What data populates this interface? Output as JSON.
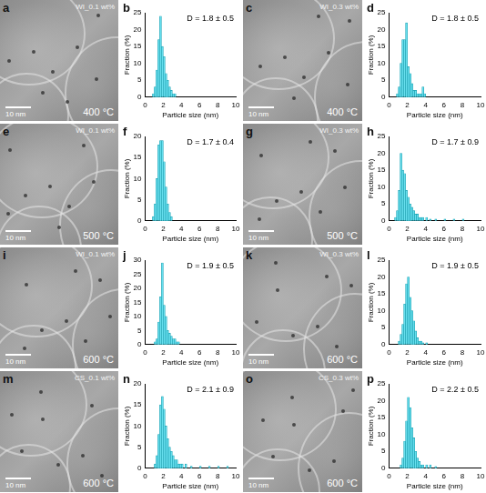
{
  "images": [
    {
      "label": "a",
      "sample": "WI_0.1 wt%",
      "temperature": "400 °C",
      "scale_bar": "10 nm"
    },
    {
      "label": "c",
      "sample": "WI_0.3 wt%",
      "temperature": "400 °C",
      "scale_bar": "10 nm"
    },
    {
      "label": "e",
      "sample": "WI_0.1 wt%",
      "temperature": "500 °C",
      "scale_bar": "10 nm"
    },
    {
      "label": "g",
      "sample": "WI_0.3 wt%",
      "temperature": "500 °C",
      "scale_bar": "10 nm"
    },
    {
      "label": "i",
      "sample": "WI_0.1 wt%",
      "temperature": "600 °C",
      "scale_bar": "10 nm"
    },
    {
      "label": "k",
      "sample": "WI_0.3 wt%",
      "temperature": "600 °C",
      "scale_bar": "10 nm"
    },
    {
      "label": "m",
      "sample": "CS_0.1 wt%",
      "temperature": "600 °C",
      "scale_bar": "10 nm"
    },
    {
      "label": "o",
      "sample": "CS_0.3 wt%",
      "temperature": "600 °C",
      "scale_bar": "10 nm"
    }
  ],
  "chart_data": [
    {
      "type": "histogram",
      "label": "b",
      "annotation": "D = 1.8 ± 0.5",
      "x_label": "Particle size (nm)",
      "y_label": "Fraction (%)",
      "bins": [
        0,
        0.2,
        0.4,
        0.6,
        0.8,
        1,
        1.2,
        1.4,
        1.6,
        1.8,
        2,
        2.2,
        2.4,
        2.6,
        2.8,
        3,
        3.2,
        3.4,
        3.6,
        3.8,
        4,
        4.2,
        4.4,
        4.6,
        4.8,
        5,
        5.2,
        5.4,
        5.6,
        5.8,
        6,
        6.2,
        6.4,
        6.6,
        6.8,
        7,
        7.2,
        7.4,
        7.6,
        7.8,
        8,
        8.2,
        8.4,
        8.6,
        8.8,
        9,
        9.2,
        9.4,
        9.6,
        9.8,
        10
      ],
      "values": [
        0,
        0,
        0,
        0,
        1,
        3,
        8,
        17,
        24,
        15,
        12,
        7,
        5,
        3,
        2,
        1,
        1,
        0,
        0,
        0,
        0,
        0,
        0,
        0,
        0,
        0,
        0,
        0,
        0,
        0,
        0,
        0,
        0,
        0,
        0,
        0,
        0,
        0,
        0,
        0,
        0,
        0,
        0,
        0,
        0,
        0,
        0,
        0,
        0,
        0
      ],
      "color": "#66dfee",
      "xlim": [
        0,
        10
      ],
      "xticks": [
        0,
        2,
        4,
        6,
        8,
        10
      ],
      "ylim": [
        0,
        25
      ],
      "yticks": [
        0,
        5,
        10,
        15,
        20,
        25
      ],
      "grid": false
    },
    {
      "type": "histogram",
      "label": "d",
      "annotation": "D = 1.8 ± 0.5",
      "x_label": "Particle size (nm)",
      "y_label": "Fraction (%)",
      "bins": [
        0,
        0.2,
        0.4,
        0.6,
        0.8,
        1,
        1.2,
        1.4,
        1.6,
        1.8,
        2,
        2.2,
        2.4,
        2.6,
        2.8,
        3,
        3.2,
        3.4,
        3.6,
        3.8,
        4,
        4.2,
        4.4,
        4.6,
        4.8,
        5,
        5.2,
        5.4,
        5.6,
        5.8,
        6,
        6.2,
        6.4,
        6.6,
        6.8,
        7,
        7.2,
        7.4,
        7.6,
        7.8,
        8,
        8.2,
        8.4,
        8.6,
        8.8,
        9,
        9.2,
        9.4,
        9.6,
        9.8,
        10
      ],
      "values": [
        0,
        0,
        0,
        0,
        1,
        3,
        10,
        17,
        17,
        22,
        9,
        7,
        4,
        2,
        2,
        1,
        1,
        1,
        3,
        1,
        0,
        0,
        0,
        0,
        0,
        0,
        0,
        0,
        0,
        0,
        0,
        0,
        0,
        0,
        0,
        0,
        0,
        0,
        0,
        0,
        0,
        0,
        0,
        0,
        0,
        0,
        0,
        0,
        0,
        0
      ],
      "color": "#66dfee",
      "xlim": [
        0,
        10
      ],
      "xticks": [
        0,
        2,
        4,
        6,
        8,
        10
      ],
      "ylim": [
        0,
        25
      ],
      "yticks": [
        0,
        5,
        10,
        15,
        20,
        25
      ],
      "grid": false
    },
    {
      "type": "histogram",
      "label": "f",
      "annotation": "D = 1.7 ± 0.4",
      "x_label": "Particle size (nm)",
      "y_label": "Fraction (%)",
      "bins": [
        0,
        0.2,
        0.4,
        0.6,
        0.8,
        1,
        1.2,
        1.4,
        1.6,
        1.8,
        2,
        2.2,
        2.4,
        2.6,
        2.8,
        3,
        3.2,
        3.4,
        3.6,
        3.8,
        4,
        4.2,
        4.4,
        4.6,
        4.8,
        5,
        5.2,
        5.4,
        5.6,
        5.8,
        6,
        6.2,
        6.4,
        6.6,
        6.8,
        7,
        7.2,
        7.4,
        7.6,
        7.8,
        8,
        8.2,
        8.4,
        8.6,
        8.8,
        9,
        9.2,
        9.4,
        9.6,
        9.8,
        10
      ],
      "values": [
        0,
        0,
        0,
        0,
        1,
        4,
        10,
        18,
        19,
        19,
        14,
        8,
        4,
        2,
        1,
        0,
        0,
        0,
        0,
        0,
        0,
        0,
        0,
        0,
        0,
        0,
        0,
        0,
        0,
        0,
        0,
        0,
        0,
        0,
        0,
        0,
        0,
        0,
        0,
        0,
        0,
        0,
        0,
        0,
        0,
        0,
        0,
        0,
        0,
        0
      ],
      "color": "#66dfee",
      "xlim": [
        0,
        10
      ],
      "xticks": [
        0,
        2,
        4,
        6,
        8,
        10
      ],
      "ylim": [
        0,
        20
      ],
      "yticks": [
        0,
        5,
        10,
        15,
        20
      ],
      "grid": false
    },
    {
      "type": "histogram",
      "label": "h",
      "annotation": "D = 1.7 ± 0.9",
      "x_label": "Particle size (nm)",
      "y_label": "Fraction (%)",
      "bins": [
        0,
        0.2,
        0.4,
        0.6,
        0.8,
        1,
        1.2,
        1.4,
        1.6,
        1.8,
        2,
        2.2,
        2.4,
        2.6,
        2.8,
        3,
        3.2,
        3.4,
        3.6,
        3.8,
        4,
        4.2,
        4.4,
        4.6,
        4.8,
        5,
        5.2,
        5.4,
        5.6,
        5.8,
        6,
        6.2,
        6.4,
        6.6,
        6.8,
        7,
        7.2,
        7.4,
        7.6,
        7.8,
        8,
        8.2,
        8.4,
        8.6,
        8.8,
        9,
        9.2,
        9.4,
        9.6,
        9.8,
        10
      ],
      "values": [
        0,
        0,
        0,
        1,
        3,
        9,
        20,
        15,
        14,
        9,
        7,
        5,
        4,
        3,
        2,
        2,
        1,
        1,
        1,
        0,
        1,
        0,
        0.5,
        0,
        0,
        0.5,
        0,
        0,
        0,
        0,
        0.5,
        0,
        0,
        0,
        0,
        0.5,
        0,
        0,
        0,
        0,
        0.5,
        0,
        0,
        0,
        0,
        0,
        0,
        0,
        0,
        0
      ],
      "color": "#66dfee",
      "xlim": [
        0,
        10
      ],
      "xticks": [
        0,
        2,
        4,
        6,
        8,
        10
      ],
      "ylim": [
        0,
        25
      ],
      "yticks": [
        0,
        5,
        10,
        15,
        20,
        25
      ],
      "grid": false
    },
    {
      "type": "histogram",
      "label": "j",
      "annotation": "D = 1.9 ± 0.5",
      "x_label": "Particle size (nm)",
      "y_label": "Fraction (%)",
      "bins": [
        0,
        0.2,
        0.4,
        0.6,
        0.8,
        1,
        1.2,
        1.4,
        1.6,
        1.8,
        2,
        2.2,
        2.4,
        2.6,
        2.8,
        3,
        3.2,
        3.4,
        3.6,
        3.8,
        4,
        4.2,
        4.4,
        4.6,
        4.8,
        5,
        5.2,
        5.4,
        5.6,
        5.8,
        6,
        6.2,
        6.4,
        6.6,
        6.8,
        7,
        7.2,
        7.4,
        7.6,
        7.8,
        8,
        8.2,
        8.4,
        8.6,
        8.8,
        9,
        9.2,
        9.4,
        9.6,
        9.8,
        10
      ],
      "values": [
        0,
        0,
        0,
        0,
        0,
        1,
        2,
        8,
        17,
        29,
        14,
        10,
        5,
        4,
        3,
        2,
        2,
        1,
        1,
        0,
        0,
        0,
        0,
        0,
        0,
        0,
        0,
        0,
        0,
        0,
        0,
        0,
        0,
        0,
        0,
        0,
        0,
        0,
        0,
        0,
        0,
        0,
        0,
        0,
        0,
        0,
        0,
        0,
        0,
        0
      ],
      "color": "#66dfee",
      "xlim": [
        0,
        10
      ],
      "xticks": [
        0,
        2,
        4,
        6,
        8,
        10
      ],
      "ylim": [
        0,
        30
      ],
      "yticks": [
        0,
        5,
        10,
        15,
        20,
        25,
        30
      ],
      "grid": false
    },
    {
      "type": "histogram",
      "label": "l",
      "annotation": "D = 1.9 ± 0.5",
      "x_label": "Particle size (nm)",
      "y_label": "Fraction (%)",
      "bins": [
        0,
        0.2,
        0.4,
        0.6,
        0.8,
        1,
        1.2,
        1.4,
        1.6,
        1.8,
        2,
        2.2,
        2.4,
        2.6,
        2.8,
        3,
        3.2,
        3.4,
        3.6,
        3.8,
        4,
        4.2,
        4.4,
        4.6,
        4.8,
        5,
        5.2,
        5.4,
        5.6,
        5.8,
        6,
        6.2,
        6.4,
        6.6,
        6.8,
        7,
        7.2,
        7.4,
        7.6,
        7.8,
        8,
        8.2,
        8.4,
        8.6,
        8.8,
        9,
        9.2,
        9.4,
        9.6,
        9.8,
        10
      ],
      "values": [
        0,
        0,
        0,
        0,
        0,
        1,
        3,
        6,
        12,
        18,
        20,
        14,
        10,
        7,
        4,
        2,
        1,
        1,
        0.5,
        0,
        0.5,
        0,
        0,
        0,
        0,
        0,
        0,
        0,
        0,
        0,
        0,
        0,
        0,
        0,
        0,
        0,
        0,
        0,
        0,
        0,
        0,
        0,
        0,
        0,
        0,
        0,
        0,
        0,
        0,
        0
      ],
      "color": "#66dfee",
      "xlim": [
        0,
        10
      ],
      "xticks": [
        0,
        2,
        4,
        6,
        8,
        10
      ],
      "ylim": [
        0,
        25
      ],
      "yticks": [
        0,
        5,
        10,
        15,
        20,
        25
      ],
      "grid": false
    },
    {
      "type": "histogram",
      "label": "n",
      "annotation": "D = 2.1 ± 0.9",
      "x_label": "Particle size (nm)",
      "y_label": "Fraction (%)",
      "bins": [
        0,
        0.2,
        0.4,
        0.6,
        0.8,
        1,
        1.2,
        1.4,
        1.6,
        1.8,
        2,
        2.2,
        2.4,
        2.6,
        2.8,
        3,
        3.2,
        3.4,
        3.6,
        3.8,
        4,
        4.2,
        4.4,
        4.6,
        4.8,
        5,
        5.2,
        5.4,
        5.6,
        5.8,
        6,
        6.2,
        6.4,
        6.6,
        6.8,
        7,
        7.2,
        7.4,
        7.6,
        7.8,
        8,
        8.2,
        8.4,
        8.6,
        8.8,
        9,
        9.2,
        9.4,
        9.6,
        9.8,
        10
      ],
      "values": [
        0,
        0,
        0,
        0,
        0,
        1,
        3,
        8,
        15,
        17,
        14,
        10,
        7,
        5,
        4,
        3,
        2,
        2,
        1,
        1,
        1,
        0,
        1,
        0,
        0,
        0.5,
        0,
        0,
        0,
        0,
        0.5,
        0,
        0,
        0,
        0,
        0.5,
        0,
        0,
        0,
        0,
        0.5,
        0,
        0,
        0,
        0,
        0.5,
        0,
        0,
        0,
        0
      ],
      "color": "#66dfee",
      "xlim": [
        0,
        10
      ],
      "xticks": [
        0,
        2,
        4,
        6,
        8,
        10
      ],
      "ylim": [
        0,
        20
      ],
      "yticks": [
        0,
        5,
        10,
        15,
        20
      ],
      "grid": false
    },
    {
      "type": "histogram",
      "label": "p",
      "annotation": "D = 2.2 ± 0.5",
      "x_label": "Particle size (nm)",
      "y_label": "Fraction (%)",
      "bins": [
        0,
        0.2,
        0.4,
        0.6,
        0.8,
        1,
        1.2,
        1.4,
        1.6,
        1.8,
        2,
        2.2,
        2.4,
        2.6,
        2.8,
        3,
        3.2,
        3.4,
        3.6,
        3.8,
        4,
        4.2,
        4.4,
        4.6,
        4.8,
        5,
        5.2,
        5.4,
        5.6,
        5.8,
        6,
        6.2,
        6.4,
        6.6,
        6.8,
        7,
        7.2,
        7.4,
        7.6,
        7.8,
        8,
        8.2,
        8.4,
        8.6,
        8.8,
        9,
        9.2,
        9.4,
        9.6,
        9.8,
        10
      ],
      "values": [
        0,
        0,
        0,
        0,
        0,
        0,
        1,
        3,
        8,
        14,
        21,
        18,
        12,
        9,
        5,
        3,
        2,
        1,
        1,
        0,
        1,
        0,
        1,
        0,
        0,
        0.5,
        0,
        0,
        0,
        0,
        0,
        0,
        0,
        0,
        0,
        0,
        0,
        0,
        0,
        0,
        0,
        0,
        0,
        0,
        0,
        0,
        0,
        0,
        0,
        0
      ],
      "color": "#66dfee",
      "xlim": [
        0,
        10
      ],
      "xticks": [
        0,
        2,
        4,
        6,
        8,
        10
      ],
      "ylim": [
        0,
        25
      ],
      "yticks": [
        0,
        5,
        10,
        15,
        20,
        25
      ],
      "grid": false
    }
  ]
}
